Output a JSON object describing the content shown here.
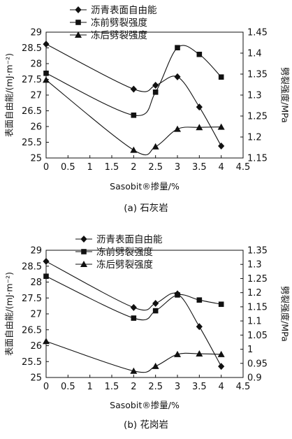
{
  "chart_data": [
    {
      "type": "line",
      "caption": "(a) 石灰岩",
      "xlabel": "Sasobit®掺量/%",
      "ylabel_left": "表面自由能/(mJ·m⁻²)",
      "ylabel_right": "劈裂强度/MPa",
      "xlim": [
        0,
        4.5
      ],
      "xticks": [
        0,
        0.5,
        1,
        1.5,
        2,
        2.5,
        3,
        3.5,
        4,
        4.5
      ],
      "ylim_left": [
        25,
        29
      ],
      "yticks_left": [
        25,
        25.5,
        26,
        26.5,
        27,
        27.5,
        28,
        28.5,
        29
      ],
      "ylim_right": [
        1.15,
        1.45
      ],
      "yticks_right": [
        1.15,
        1.2,
        1.25,
        1.3,
        1.35,
        1.4,
        1.45
      ],
      "legend_position": "top-center",
      "grid": false,
      "series": [
        {
          "name": "沥青表面自由能",
          "axis": "left",
          "marker": "diamond",
          "x": [
            0,
            2,
            2.5,
            3,
            3.5,
            4
          ],
          "y": [
            28.62,
            27.19,
            27.31,
            27.58,
            26.62,
            25.38
          ]
        },
        {
          "name": "冻前劈裂强度",
          "axis": "right",
          "marker": "square",
          "x": [
            0,
            2,
            2.5,
            3,
            3.5,
            4
          ],
          "y": [
            1.352,
            1.252,
            1.307,
            1.413,
            1.397,
            1.343
          ]
        },
        {
          "name": "冻后劈裂强度",
          "axis": "right",
          "marker": "triangle",
          "x": [
            0,
            2,
            2.5,
            3,
            3.5,
            4
          ],
          "y": [
            1.336,
            1.169,
            1.177,
            1.219,
            1.223,
            1.224
          ]
        }
      ]
    },
    {
      "type": "line",
      "caption": "(b) 花岗岩",
      "xlabel": "Sasobit®掺量/%",
      "ylabel_left": "表面自由能/(mJ·m⁻²)",
      "ylabel_right": "劈裂强度/MPa",
      "xlim": [
        0,
        4.5
      ],
      "xticks": [
        0,
        0.5,
        1,
        1.5,
        2,
        2.5,
        3,
        3.5,
        4,
        4.5
      ],
      "ylim_left": [
        25,
        29
      ],
      "yticks_left": [
        25,
        25.5,
        26,
        26.5,
        27,
        27.5,
        28,
        28.5,
        29
      ],
      "ylim_right": [
        0.9,
        1.35
      ],
      "yticks_right": [
        0.9,
        0.95,
        1.0,
        1.05,
        1.1,
        1.15,
        1.2,
        1.25,
        1.3,
        1.35
      ],
      "legend_position": "top-center",
      "grid": false,
      "series": [
        {
          "name": "沥青表面自由能",
          "axis": "left",
          "marker": "diamond",
          "x": [
            0,
            2,
            2.5,
            3,
            3.5,
            4
          ],
          "y": [
            28.65,
            27.2,
            27.33,
            27.63,
            26.6,
            25.35
          ]
        },
        {
          "name": "冻前劈裂强度",
          "axis": "right",
          "marker": "square",
          "x": [
            0,
            2,
            2.5,
            3,
            3.5,
            4
          ],
          "y": [
            1.258,
            1.11,
            1.136,
            1.192,
            1.174,
            1.159
          ]
        },
        {
          "name": "冻后劈裂强度",
          "axis": "right",
          "marker": "triangle",
          "x": [
            0,
            2,
            2.5,
            3,
            3.5,
            4
          ],
          "y": [
            1.028,
            0.923,
            0.94,
            0.982,
            0.984,
            0.982
          ]
        }
      ]
    }
  ]
}
